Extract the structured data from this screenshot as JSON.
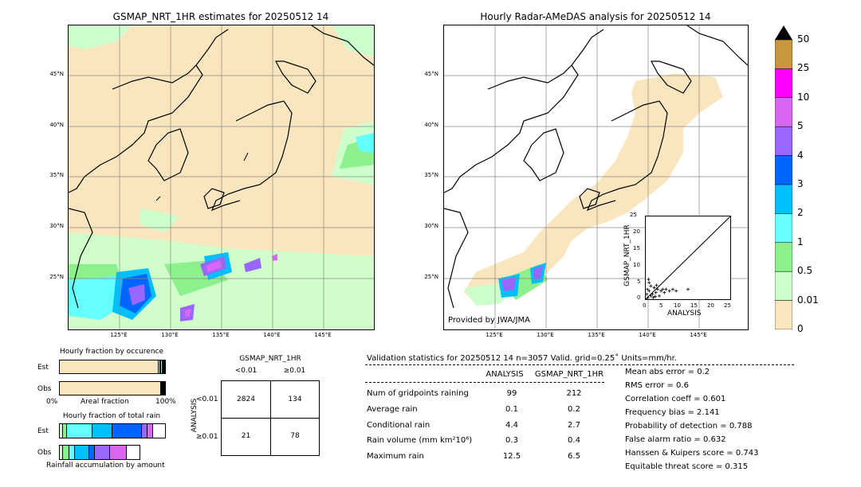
{
  "left_panel": {
    "title": "GSMAP_NRT_1HR estimates for 20250512 14",
    "lat_ticks": [
      "45°N",
      "40°N",
      "35°N",
      "30°N",
      "25°N"
    ],
    "lon_ticks": [
      "125°E",
      "130°E",
      "135°E",
      "140°E",
      "145°E"
    ]
  },
  "right_panel": {
    "title": "Hourly Radar-AMeDAS analysis for 20250512 14",
    "lat_ticks": [
      "45°N",
      "40°N",
      "35°N",
      "30°N",
      "25°N"
    ],
    "lon_ticks": [
      "125°E",
      "130°E",
      "135°E",
      "140°E",
      "145°E"
    ],
    "credit": "Provided by JWA/JMA"
  },
  "colorbar": {
    "labels": [
      "50",
      "25",
      "10",
      "5",
      "4",
      "3",
      "2",
      "1",
      "0.5",
      "0.01",
      "0"
    ],
    "colors": [
      "#c8963c",
      "#ff00ff",
      "#d966f2",
      "#9966ff",
      "#0066ff",
      "#00bfff",
      "#66ffff",
      "#8cf08c",
      "#ccffcc",
      "#fae6be"
    ]
  },
  "chart_data": [
    {
      "type": "scatter",
      "title": "",
      "xlabel": "ANALYSIS",
      "ylabel": "GSMAP_NRT_1HR",
      "xlim": [
        0,
        25
      ],
      "ylim": [
        0,
        25
      ],
      "x_ticks": [
        "0",
        "5",
        "10",
        "15",
        "20",
        "25"
      ],
      "y_ticks": [
        "0",
        "5",
        "10",
        "15",
        "20",
        "25"
      ],
      "reference_line": "y = x",
      "points": [
        {
          "x": 0.5,
          "y": 3.0
        },
        {
          "x": 1.0,
          "y": 2.5
        },
        {
          "x": 1.5,
          "y": 4.0
        },
        {
          "x": 2.0,
          "y": 1.5
        },
        {
          "x": 2.5,
          "y": 3.5
        },
        {
          "x": 3.0,
          "y": 2.0
        },
        {
          "x": 3.5,
          "y": 3.0
        },
        {
          "x": 4.0,
          "y": 1.0
        },
        {
          "x": 4.5,
          "y": 2.5
        },
        {
          "x": 5.0,
          "y": 3.0
        },
        {
          "x": 5.5,
          "y": 2.0
        },
        {
          "x": 6.0,
          "y": 3.0
        },
        {
          "x": 7.0,
          "y": 2.5
        },
        {
          "x": 8.0,
          "y": 3.0
        },
        {
          "x": 9.0,
          "y": 2.5
        },
        {
          "x": 12.5,
          "y": 3.0
        },
        {
          "x": 1.0,
          "y": 5.0
        },
        {
          "x": 0.8,
          "y": 6.0
        },
        {
          "x": 1.5,
          "y": 1.0
        },
        {
          "x": 2.2,
          "y": 0.5
        },
        {
          "x": 0.3,
          "y": 1.5
        },
        {
          "x": 0.6,
          "y": 0.4
        },
        {
          "x": 3.2,
          "y": 4.2
        },
        {
          "x": 2.8,
          "y": 0.8
        }
      ]
    },
    {
      "type": "bar",
      "title": "Hourly fraction by occurence",
      "categories": [
        "Est",
        "Obs"
      ],
      "xlabel": "Areal fraction",
      "x_ticks": [
        "0%",
        "100%"
      ],
      "series_colors": [
        "#fae6be",
        "#ccffcc",
        "#8cf08c",
        "#66ffff",
        "#00bfff",
        "#0066ff",
        "#9966ff"
      ],
      "values": [
        [
          0.94,
          0.015,
          0.01,
          0.01,
          0.01,
          0.01,
          0.005
        ],
        [
          0.96,
          0.008,
          0.008,
          0.008,
          0.008,
          0.006,
          0.002
        ]
      ]
    },
    {
      "type": "bar",
      "title": "Hourly fraction of total rain",
      "categories": [
        "Est",
        "Obs"
      ],
      "xlabel": "Rainfall accumulation by amount",
      "series_colors": [
        "#ccffcc",
        "#8cf08c",
        "#66ffff",
        "#00bfff",
        "#0066ff",
        "#9966ff",
        "#d966f2"
      ],
      "values": [
        [
          0.03,
          0.04,
          0.24,
          0.19,
          0.28,
          0.05,
          0.06
        ],
        [
          0.04,
          0.08,
          0.07,
          0.18,
          0.07,
          0.19,
          0.21
        ]
      ]
    }
  ],
  "contingency": {
    "title": "GSMAP_NRT_1HR",
    "col_headers": [
      "<0.01",
      "≥0.01"
    ],
    "row_label": "ANALYSIS",
    "row_headers": [
      "<0.01",
      "≥0.01"
    ],
    "cells": [
      [
        "2824",
        "134"
      ],
      [
        "21",
        "78"
      ]
    ]
  },
  "validation": {
    "header": "Validation statistics for 20250512 14  n=3057 Valid. grid=0.25˚ Units=mm/hr.",
    "col_analysis": "ANALYSIS",
    "col_gsmap": "GSMAP_NRT_1HR",
    "rows": [
      {
        "label": "Num of gridpoints raining",
        "a": "99",
        "g": "212"
      },
      {
        "label": "Average rain",
        "a": "0.1",
        "g": "0.2"
      },
      {
        "label": "Conditional rain",
        "a": "4.4",
        "g": "2.7"
      },
      {
        "label": "Rain volume (mm km²10⁶)",
        "a": "0.3",
        "g": "0.4"
      },
      {
        "label": "Maximum rain",
        "a": "12.5",
        "g": "6.5"
      }
    ],
    "scores": [
      "Mean abs error =    0.2",
      "RMS error =    0.6",
      "Correlation coeff =  0.601",
      "Frequency bias =  2.141",
      "Probability of detection =  0.788",
      "False alarm ratio =  0.632",
      "Hanssen & Kuipers score =  0.743",
      "Equitable threat score =  0.315"
    ]
  }
}
